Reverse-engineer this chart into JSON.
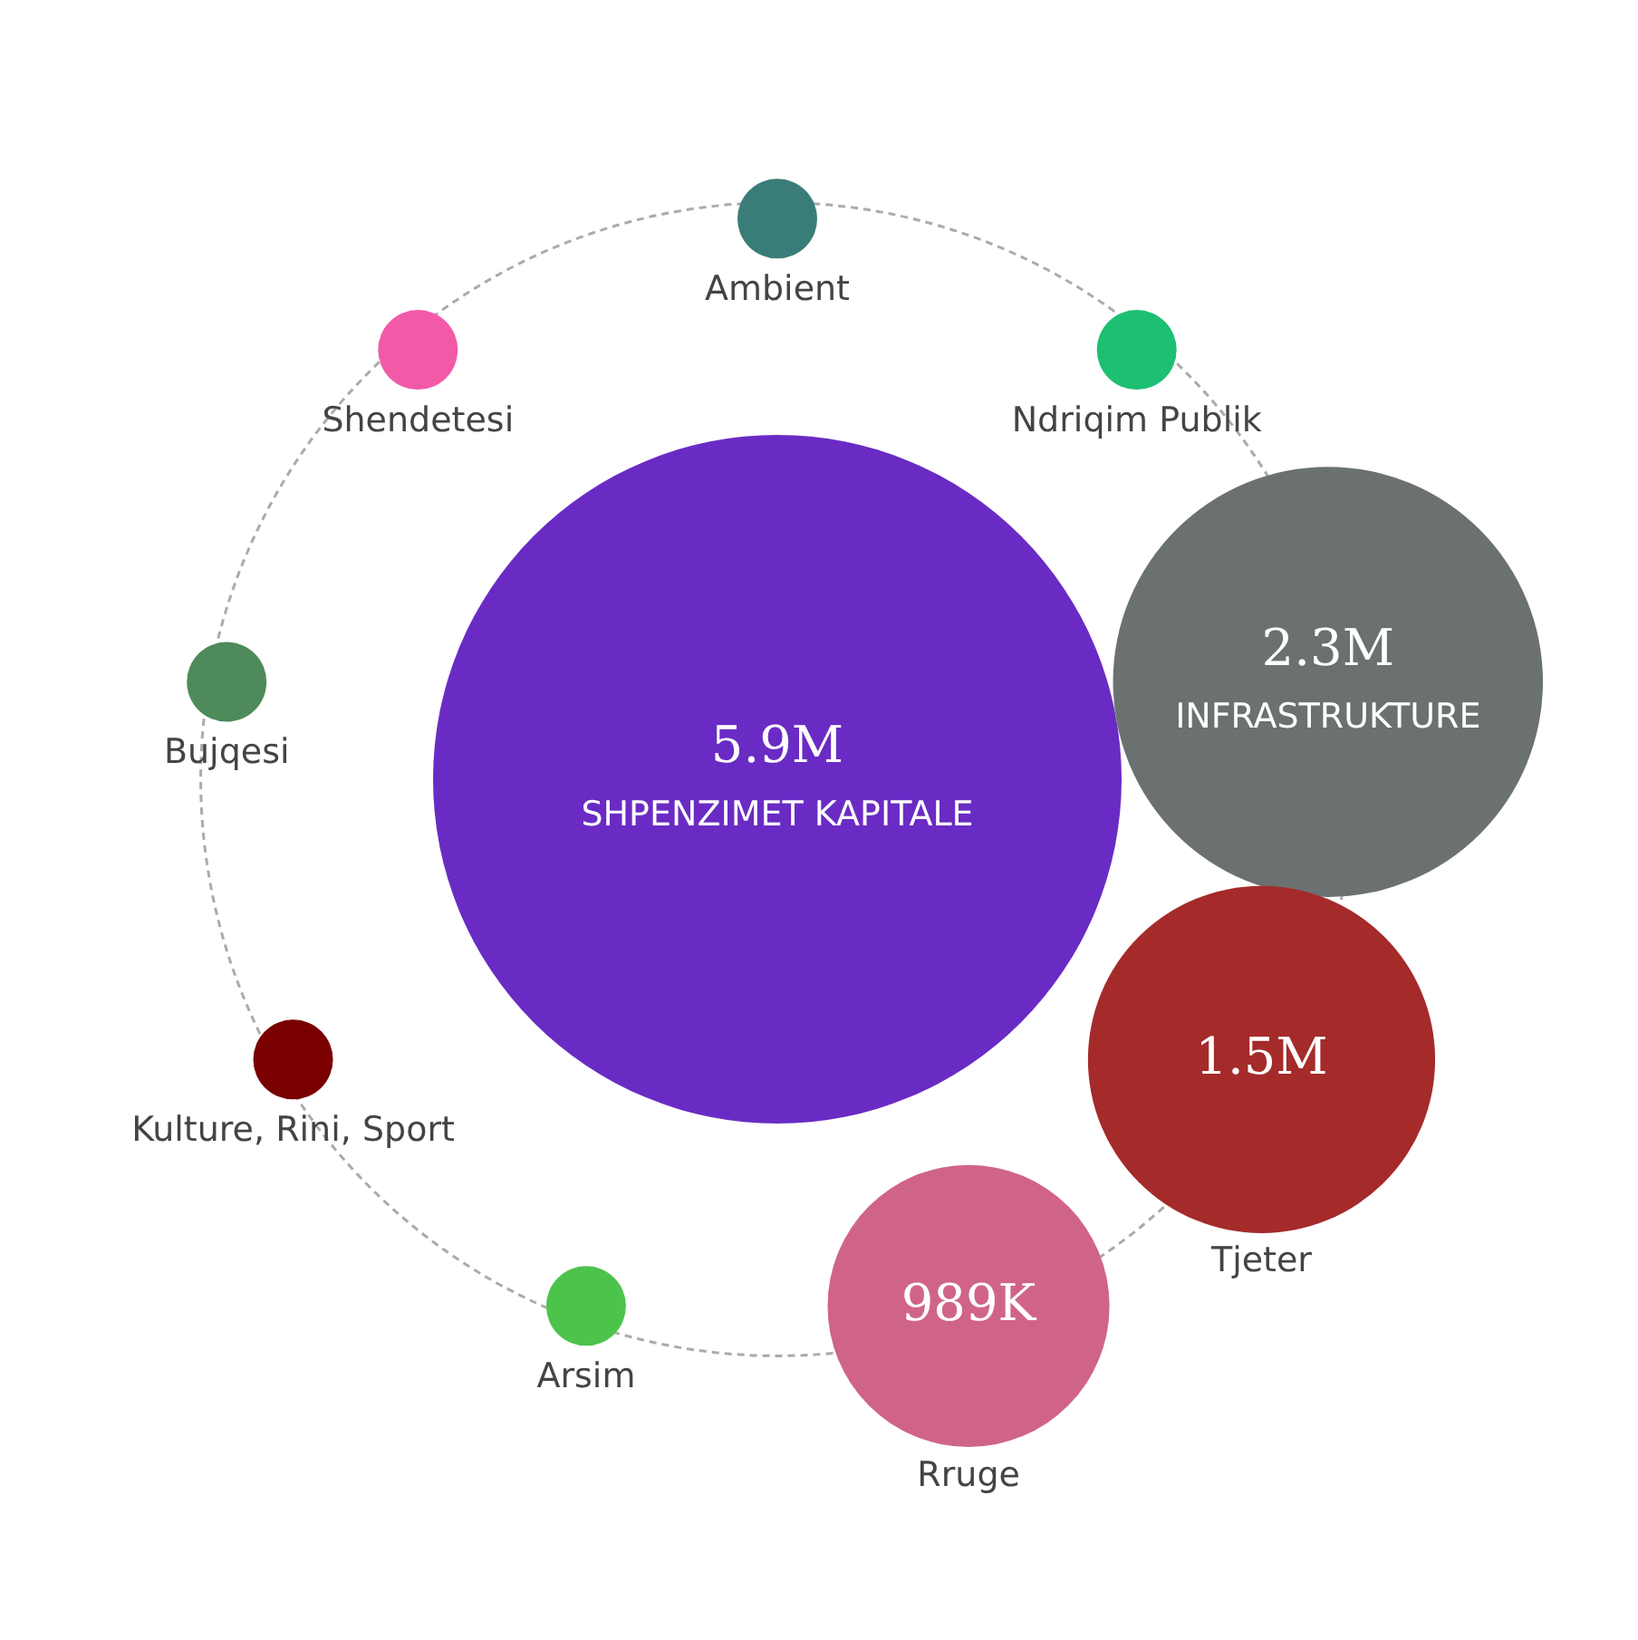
{
  "chart_data": {
    "type": "other",
    "categories": [
      "SHPENZIMET KAPITALE",
      "Ambient",
      "Ndriqim Publik",
      "INFRASTRUKTURE",
      "Tjeter",
      "Rruge",
      "Arsim",
      "Kulture, Rini, Sport",
      "Bujqesi",
      "Shendetesi"
    ],
    "value_labels": [
      "5.9M",
      null,
      null,
      "2.3M",
      "1.5M",
      "989K",
      null,
      null,
      null,
      null
    ],
    "values": [
      5900000,
      null,
      null,
      2300000,
      1500000,
      989000,
      null,
      null,
      null,
      null
    ],
    "colors": [
      "#6a2bc4",
      "#3a7d78",
      "#1dbf72",
      "#6b7070",
      "#a52a2a",
      "#d06487",
      "#4cc44c",
      "#7a0000",
      "#4f8a5a",
      "#f25aa8"
    ]
  }
}
